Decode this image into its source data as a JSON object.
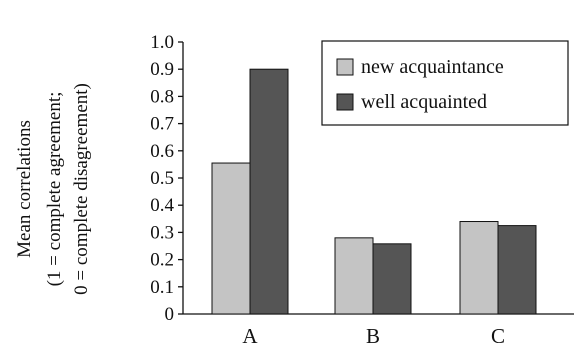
{
  "chart_data": {
    "type": "bar",
    "categories": [
      "A",
      "B",
      "C"
    ],
    "series": [
      {
        "name": "new acquaintance",
        "values": [
          0.555,
          0.28,
          0.34
        ],
        "color": "#c4c4c4"
      },
      {
        "name": "well acquainted",
        "values": [
          0.9,
          0.258,
          0.325
        ],
        "color": "#555555"
      }
    ],
    "yticks": [
      "0",
      "0.1",
      "0.2",
      "0.3",
      "0.4",
      "0.5",
      "0.6",
      "0.7",
      "0.8",
      "0.9",
      "1.0"
    ],
    "ylim": [
      0,
      1.0
    ],
    "ylabel_lines": [
      "Mean correlations",
      "(1 = complete agreement;",
      "0 = complete disagreement)"
    ],
    "xlabel": "",
    "title": "",
    "legend_position": "top-right",
    "grid": false
  }
}
